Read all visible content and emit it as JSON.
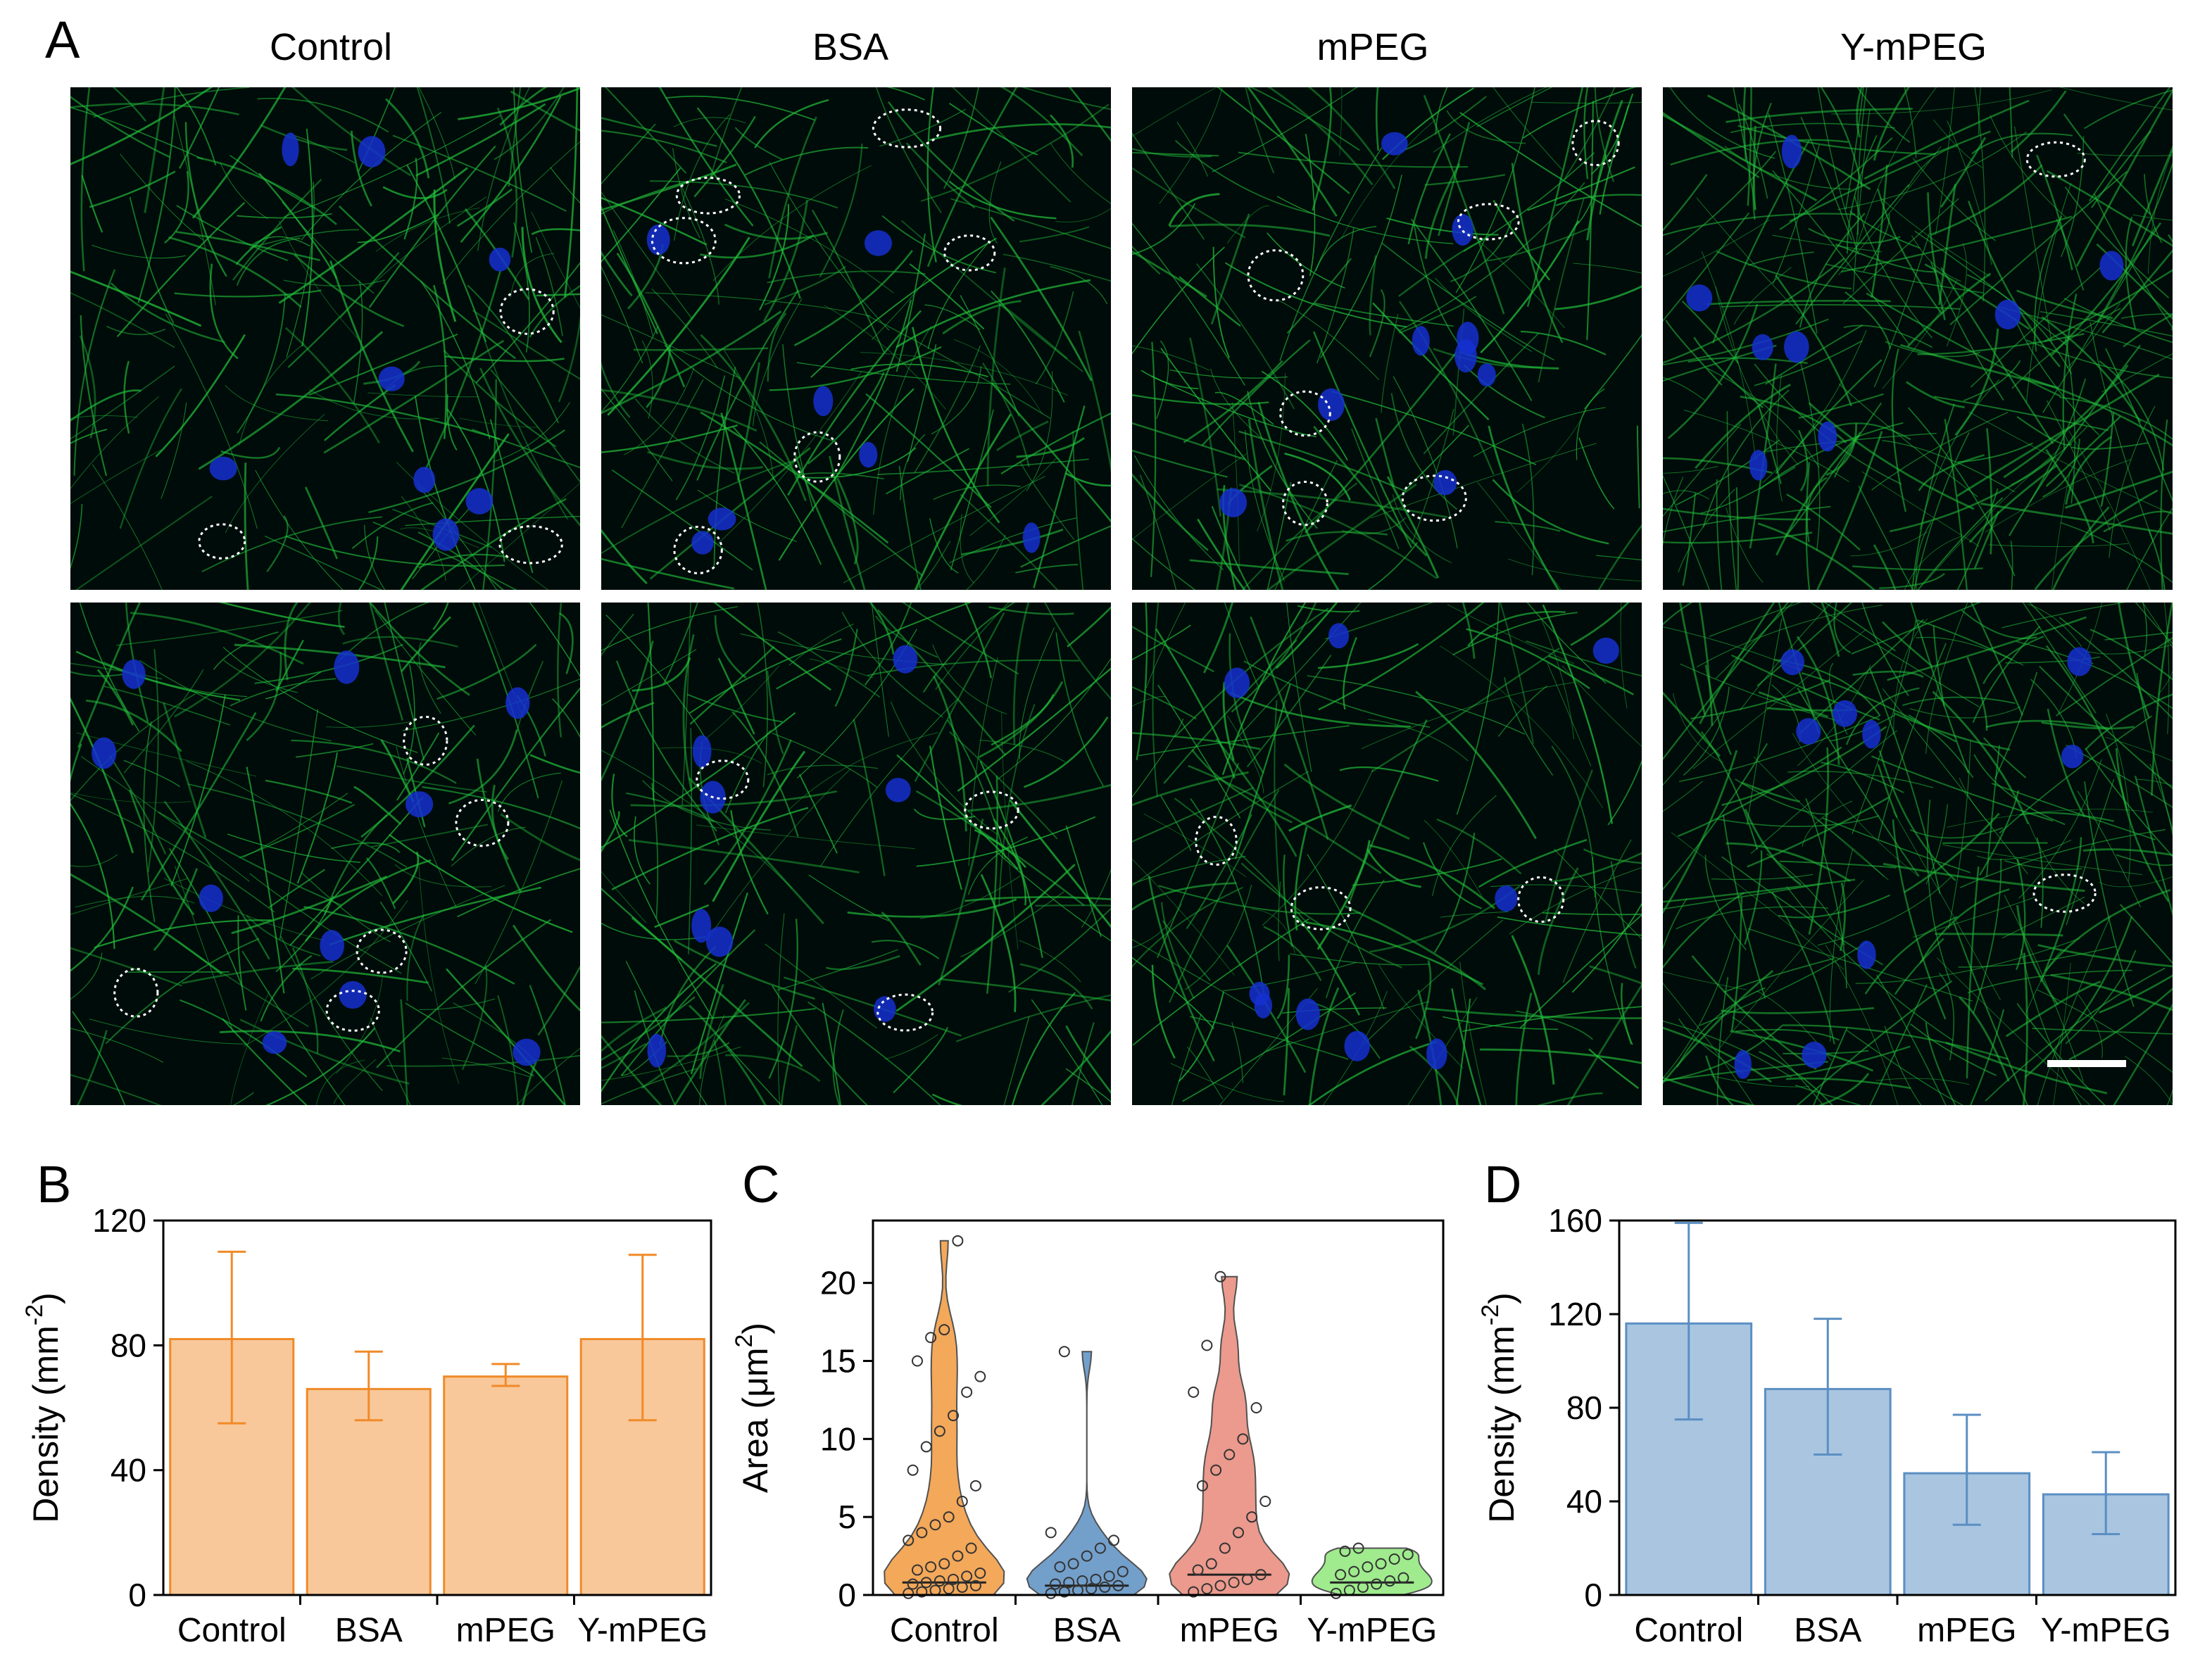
{
  "panel_labels": {
    "a": "A",
    "b": "B",
    "c": "C",
    "d": "D"
  },
  "micrograph_columns": [
    "Control",
    "BSA",
    "mPEG",
    "Y-mPEG"
  ],
  "micrograph_rows": 2,
  "colors": {
    "background": "#000c0a",
    "actin": "#22c03a",
    "nucleus": "#1530d0",
    "circle": "#ffffff",
    "scale_bar": "#ffffff",
    "orange_fill": "#f8c89a",
    "orange_stroke": "#f08a28",
    "blue_fill": "#a9c5e0",
    "blue_stroke": "#5b8fc3",
    "violin_control": "#f29a3e",
    "violin_bsa": "#5b8fc3",
    "violin_mpeg": "#e8897a",
    "violin_ympeg": "#8fe87a"
  },
  "chart_data": [
    {
      "id": "B",
      "type": "bar",
      "categories": [
        "Control",
        "BSA",
        "mPEG",
        "Y-mPEG"
      ],
      "values": [
        82,
        66,
        70,
        82
      ],
      "error_low": [
        55,
        56,
        67,
        56
      ],
      "error_high": [
        110,
        78,
        74,
        109
      ],
      "ylabel": "Density (mm",
      "ylabel_sup": "-2",
      "ylabel_close": ")",
      "ylim": [
        0,
        120
      ],
      "yticks": [
        "0",
        "40",
        "80",
        "120"
      ],
      "color": "orange"
    },
    {
      "id": "C",
      "type": "violin",
      "categories": [
        "Control",
        "BSA",
        "mPEG",
        "Y-mPEG"
      ],
      "medians": [
        0.8,
        0.6,
        1.3,
        0.8
      ],
      "max": [
        22.7,
        15.6,
        20.4,
        3.0
      ],
      "points": [
        [
          0.1,
          0.2,
          0.3,
          0.4,
          0.5,
          0.6,
          0.7,
          0.8,
          0.9,
          1.0,
          1.2,
          1.4,
          1.6,
          1.8,
          2.0,
          2.5,
          3.0,
          3.5,
          4.0,
          4.5,
          5.0,
          6.0,
          7.0,
          8.0,
          9.5,
          10.5,
          11.5,
          13.0,
          14.0,
          15.0,
          16.5,
          17.0,
          22.7
        ],
        [
          0.1,
          0.2,
          0.3,
          0.4,
          0.5,
          0.6,
          0.7,
          0.8,
          0.9,
          1.0,
          1.2,
          1.5,
          1.8,
          2.0,
          2.5,
          3.0,
          3.5,
          4.0,
          15.6
        ],
        [
          0.2,
          0.4,
          0.6,
          0.8,
          1.0,
          1.3,
          1.6,
          2.0,
          3.0,
          4.0,
          5.0,
          6.0,
          7.0,
          8.0,
          9.0,
          10.0,
          12.0,
          13.0,
          16.0,
          20.4
        ],
        [
          0.1,
          0.3,
          0.5,
          0.7,
          0.9,
          1.1,
          1.3,
          1.5,
          1.8,
          2.0,
          2.3,
          2.6,
          2.8,
          3.0
        ]
      ],
      "ylabel": "Area (μm",
      "ylabel_sup": "2",
      "ylabel_close": ")",
      "ylim": [
        0,
        24
      ],
      "yticks": [
        "0",
        "5",
        "10",
        "15",
        "20"
      ]
    },
    {
      "id": "D",
      "type": "bar",
      "categories": [
        "Control",
        "BSA",
        "mPEG",
        "Y-mPEG"
      ],
      "values": [
        116,
        88,
        52,
        43
      ],
      "error_low": [
        75,
        60,
        30,
        26
      ],
      "error_high": [
        159,
        118,
        77,
        61
      ],
      "ylabel": "Density (mm",
      "ylabel_sup": "-2",
      "ylabel_close": ")",
      "ylim": [
        0,
        160
      ],
      "yticks": [
        "0",
        "40",
        "80",
        "120",
        "160"
      ],
      "color": "blue"
    }
  ]
}
